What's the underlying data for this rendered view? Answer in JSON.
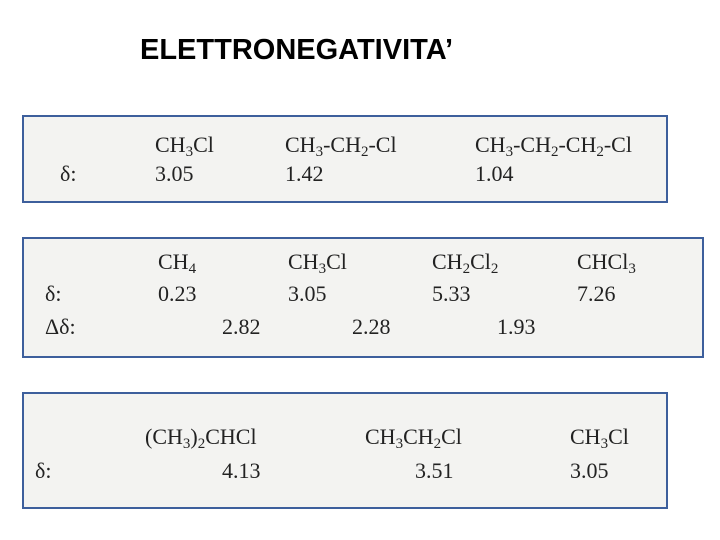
{
  "title": "ELETTRONEGATIVITA’",
  "boxes": [
    {
      "formulas": [
        "CH3Cl",
        "CH3-CH2-Cl",
        "CH3-CH2-CH2-Cl"
      ],
      "delta_label": "δ:",
      "delta": [
        "3.05",
        "1.42",
        "1.04"
      ]
    },
    {
      "formulas": [
        "CH4",
        "CH3Cl",
        "CH2Cl2",
        "CHCl3"
      ],
      "delta_label": "δ:",
      "delta": [
        "0.23",
        "3.05",
        "5.33",
        "7.26"
      ],
      "diff_label": "Δδ:",
      "diff": [
        "2.82",
        "2.28",
        "1.93"
      ]
    },
    {
      "formulas": [
        "(CH3)2CHCl",
        "CH3CH2Cl",
        "CH3Cl"
      ],
      "delta_label": "δ:",
      "delta": [
        "4.13",
        "3.51",
        "3.05"
      ]
    }
  ]
}
